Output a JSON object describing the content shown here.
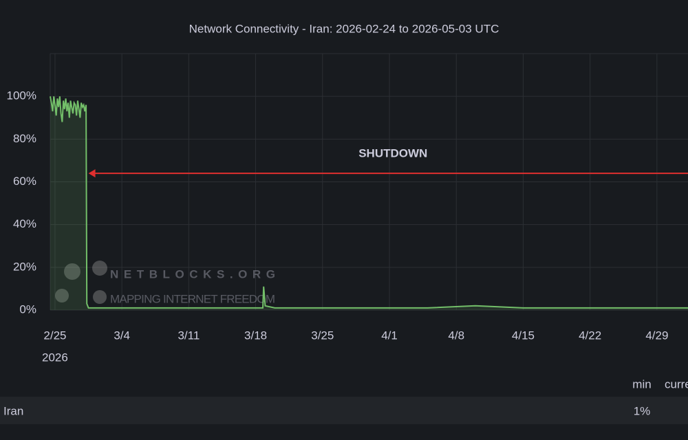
{
  "chart_data": {
    "type": "line",
    "title": "Network Connectivity - Iran: 2026-02-24 to 2026-05-03 UTC",
    "x": [
      "2026-02-24T12:00",
      "2026-02-24T15:00",
      "2026-02-24T18:00",
      "2026-02-24T21:00",
      "2026-02-25T00:00",
      "2026-02-25T03:00",
      "2026-02-25T06:00",
      "2026-02-25T09:00",
      "2026-02-25T12:00",
      "2026-02-25T15:00",
      "2026-02-25T18:00",
      "2026-02-25T21:00",
      "2026-02-26T00:00",
      "2026-02-26T03:00",
      "2026-02-26T06:00",
      "2026-02-26T09:00",
      "2026-02-26T12:00",
      "2026-02-26T15:00",
      "2026-02-26T18:00",
      "2026-02-26T21:00",
      "2026-02-27T00:00",
      "2026-02-27T03:00",
      "2026-02-27T06:00",
      "2026-02-27T09:00",
      "2026-02-27T12:00",
      "2026-02-27T15:00",
      "2026-02-27T18:00",
      "2026-02-27T21:00",
      "2026-02-28T00:00",
      "2026-02-28T03:00",
      "2026-02-28T06:00",
      "2026-02-28T08:00",
      "2026-02-28T12:00",
      "2026-03-01T00:00",
      "2026-03-04T00:00",
      "2026-03-08T00:00",
      "2026-03-12T00:00",
      "2026-03-16T00:00",
      "2026-03-18T18:00",
      "2026-03-18T20:00",
      "2026-03-19T00:00",
      "2026-03-20T00:00",
      "2026-03-25T00:00",
      "2026-04-01T00:00",
      "2026-04-05T00:00",
      "2026-04-10T00:00",
      "2026-04-15T00:00",
      "2026-04-20T00:00",
      "2026-04-26T00:00",
      "2026-05-02T06:00"
    ],
    "series": [
      {
        "name": "Iran",
        "color": "#73bf69",
        "values": [
          100,
          97,
          93,
          100,
          96,
          91,
          99,
          95,
          100,
          92,
          88,
          98,
          94,
          99,
          93,
          97,
          90,
          98,
          95,
          92,
          97,
          96,
          91,
          98,
          94,
          90,
          97,
          95,
          96,
          93,
          96,
          3,
          1,
          1,
          1,
          1,
          1,
          1,
          1,
          11,
          2,
          1,
          1,
          1,
          1,
          2,
          1,
          1,
          1,
          1
        ]
      }
    ],
    "xlim": [
      "2026-02-24T12:00",
      "2026-05-02T06:00"
    ],
    "xticks": [
      {
        "value": "2026-02-25T00:00",
        "label": "2/25"
      },
      {
        "value": "2026-03-04T00:00",
        "label": "3/4"
      },
      {
        "value": "2026-03-11T00:00",
        "label": "3/11"
      },
      {
        "value": "2026-03-18T00:00",
        "label": "3/18"
      },
      {
        "value": "2026-03-25T00:00",
        "label": "3/25"
      },
      {
        "value": "2026-04-01T00:00",
        "label": "4/1"
      },
      {
        "value": "2026-04-08T00:00",
        "label": "4/8"
      },
      {
        "value": "2026-04-15T00:00",
        "label": "4/15"
      },
      {
        "value": "2026-04-22T00:00",
        "label": "4/22"
      },
      {
        "value": "2026-04-29T00:00",
        "label": "4/29"
      }
    ],
    "year_label": "2026",
    "ylim": [
      0,
      120
    ],
    "yticks": [
      {
        "value": 0,
        "label": "0%"
      },
      {
        "value": 20,
        "label": "20%"
      },
      {
        "value": 40,
        "label": "40%"
      },
      {
        "value": 60,
        "label": "60%"
      },
      {
        "value": 80,
        "label": "80%"
      },
      {
        "value": 100,
        "label": "100%"
      }
    ],
    "grid": true,
    "annotation": {
      "text": "SHUTDOWN",
      "x": "2026-02-28T12:00",
      "y": 64,
      "color": "#e02f2f",
      "text_color": "#f2a33a"
    },
    "watermark": [
      "NETBLOCKS.ORG",
      "MAPPING INTERNET FREEDOM"
    ],
    "legend": {
      "headers": [
        "min",
        "current"
      ],
      "rows": [
        {
          "name": "Iran",
          "min": {
            "value": 1,
            "label": "1%"
          }
        }
      ]
    }
  }
}
